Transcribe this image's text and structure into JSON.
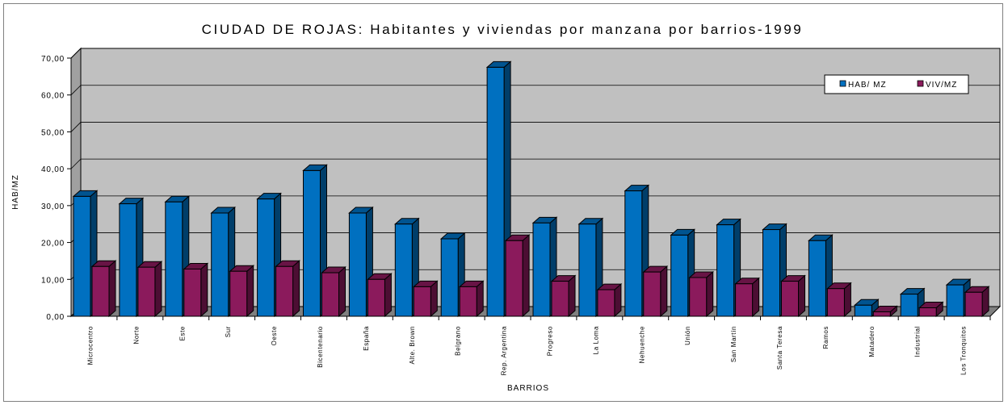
{
  "chart_data": {
    "type": "bar",
    "title": "CIUDAD DE ROJAS:  Habitantes y viviendas por manzana por barrios-1999",
    "xlabel": "BARRIOS",
    "ylabel": "HAB/MZ",
    "ylim": [
      0,
      70
    ],
    "yticks": [
      "0,00",
      "10,00",
      "20,00",
      "30,00",
      "40,00",
      "50,00",
      "60,00",
      "70,00"
    ],
    "grid": true,
    "legend_position": "top-right",
    "categories": [
      "Microcentro",
      "Norte",
      "Este",
      "Sur",
      "Oeste",
      "Bicentenario",
      "España",
      "Alte. Brown",
      "Belgrano",
      "Rep. Argentina",
      "Progreso",
      "La Loma",
      "Nehuenche",
      "Unión",
      "San Martín",
      "Santa Teresa",
      "Ramos",
      "Matadero",
      "Industrial",
      "Los Tronquitos"
    ],
    "series": [
      {
        "name": "HAB/ MZ",
        "color": "#0070C0",
        "values": [
          32.5,
          30.5,
          31,
          28,
          31.8,
          39.5,
          28,
          25,
          21,
          67.5,
          25.3,
          25,
          34,
          22,
          24.8,
          23.5,
          20.5,
          3,
          6,
          8.5
        ]
      },
      {
        "name": "VIV/MZ",
        "color": "#8B1A5C",
        "values": [
          13.5,
          13.3,
          12.8,
          12.2,
          13.5,
          11.8,
          10,
          8,
          8,
          20.5,
          9.5,
          7.2,
          12,
          10.5,
          8.8,
          9.5,
          7.5,
          1.2,
          2.3,
          6.5
        ]
      }
    ]
  }
}
